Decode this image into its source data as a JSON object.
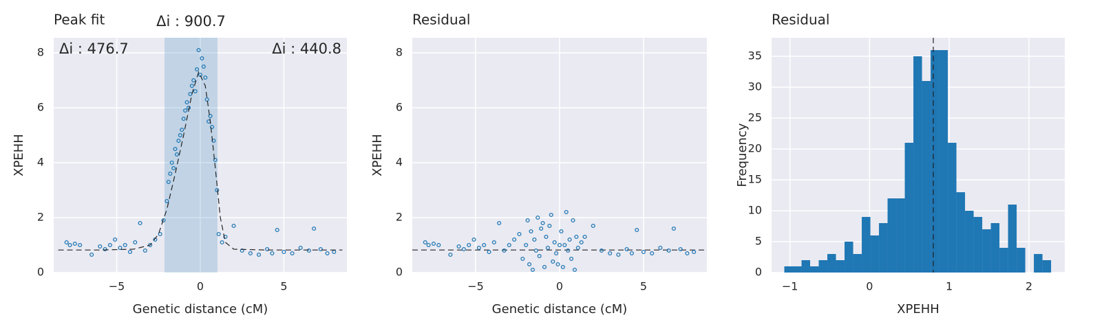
{
  "chart_data": [
    {
      "type": "scatter",
      "title": "Peak fit",
      "xlabel": "Genetic distance (cM)",
      "ylabel": "XPEHH",
      "annotations": [
        "Δi : 900.7",
        "Δi : 476.7",
        "Δi : 440.8"
      ],
      "xlim": [
        -8.77,
        8.77
      ],
      "ylim": [
        0,
        8.55
      ],
      "xticks": [
        {
          "value": -5,
          "label": "−5"
        },
        0,
        5
      ],
      "yticks": [
        0,
        2,
        4,
        6,
        8
      ],
      "grid": true,
      "color": "#1f77b4",
      "span": [
        -2.14,
        1.03
      ],
      "x": [
        -8,
        -7.8,
        -7.5,
        -7.2,
        -6.5,
        -6,
        -5.7,
        -5.4,
        -5.1,
        -4.8,
        -4.5,
        -4.2,
        -3.9,
        -3.6,
        -3.3,
        -3.0,
        -2.7,
        -2.4,
        -2.2,
        -2.0,
        -1.9,
        -1.8,
        -1.7,
        -1.6,
        -1.5,
        -1.4,
        -1.3,
        -1.2,
        -1.1,
        -1.0,
        -0.9,
        -0.8,
        -0.7,
        -0.6,
        -0.5,
        -0.4,
        -0.3,
        -0.2,
        -0.1,
        0,
        0.1,
        0.2,
        0.3,
        0.4,
        0.5,
        0.6,
        0.7,
        0.8,
        0.9,
        1.0,
        1.1,
        1.3,
        1.5,
        2.0,
        2.5,
        3.0,
        3.5,
        4.0,
        4.3,
        4.6,
        5.0,
        5.5,
        6.0,
        6.5,
        6.8,
        7.2,
        7.6,
        8.0
      ],
      "y": [
        1.1,
        1.0,
        1.05,
        1.0,
        0.65,
        0.95,
        0.85,
        1.0,
        1.2,
        0.9,
        1.0,
        0.75,
        1.1,
        1.8,
        0.8,
        1.0,
        1.2,
        1.4,
        1.9,
        2.6,
        3.3,
        3.6,
        4.0,
        3.8,
        4.5,
        4.3,
        4.8,
        5.0,
        5.2,
        5.6,
        5.9,
        6.2,
        6.0,
        6.5,
        6.8,
        7.0,
        6.6,
        7.4,
        8.1,
        7.2,
        7.8,
        7.5,
        7.1,
        6.3,
        5.5,
        5.7,
        5.3,
        4.8,
        4.1,
        3.0,
        1.4,
        1.1,
        1.3,
        1.7,
        0.8,
        0.7,
        0.65,
        0.85,
        0.7,
        1.55,
        0.75,
        0.7,
        0.9,
        0.8,
        1.6,
        0.85,
        0.7,
        0.75
      ],
      "fit": {
        "x": [
          -8.5,
          -6,
          -4,
          -3,
          -2.5,
          -2,
          -1.5,
          -1,
          -0.5,
          -0.1,
          0.3,
          0.6,
          0.9,
          1.2,
          1.5,
          2,
          4,
          8.5
        ],
        "y": [
          0.82,
          0.82,
          0.85,
          1.0,
          1.4,
          2.3,
          3.6,
          5.0,
          6.5,
          7.3,
          6.8,
          5.5,
          3.8,
          2.0,
          1.1,
          0.85,
          0.82,
          0.82
        ]
      }
    },
    {
      "type": "scatter",
      "title": "Residual",
      "xlabel": "Genetic distance (cM)",
      "ylabel": "XPEHH",
      "xlim": [
        -8.77,
        8.77
      ],
      "ylim": [
        0,
        8.55
      ],
      "xticks": [
        {
          "value": -5,
          "label": "−5"
        },
        0,
        5
      ],
      "yticks": [
        0,
        2,
        4,
        6,
        8
      ],
      "grid": true,
      "color": "#1f77b4",
      "hline": 0.82,
      "x": [
        -8,
        -7.8,
        -7.5,
        -7.2,
        -6.5,
        -6,
        -5.7,
        -5.4,
        -5.1,
        -4.8,
        -4.5,
        -4.2,
        -3.9,
        -3.6,
        -3.3,
        -3.0,
        -2.7,
        -2.4,
        -2.2,
        -2.0,
        -1.9,
        -1.8,
        -1.7,
        -1.6,
        -1.5,
        -1.4,
        -1.3,
        -1.2,
        -1.1,
        -1.0,
        -0.9,
        -0.8,
        -0.7,
        -0.6,
        -0.5,
        -0.4,
        -0.3,
        -0.2,
        -0.1,
        0,
        0.1,
        0.2,
        0.3,
        0.4,
        0.5,
        0.6,
        0.7,
        0.8,
        0.9,
        1.0,
        1.1,
        1.3,
        1.5,
        2.0,
        2.5,
        3.0,
        3.5,
        4.0,
        4.3,
        4.6,
        5.0,
        5.5,
        6.0,
        6.5,
        6.8,
        7.2,
        7.6,
        8.0
      ],
      "y": [
        1.1,
        1.0,
        1.05,
        1.0,
        0.65,
        0.95,
        0.85,
        1.0,
        1.2,
        0.9,
        1.0,
        0.75,
        1.1,
        1.8,
        0.8,
        1.0,
        1.2,
        1.4,
        0.5,
        1.0,
        1.9,
        0.3,
        1.5,
        0.1,
        1.2,
        0.8,
        2.0,
        0.6,
        1.6,
        1.8,
        0.2,
        1.3,
        0.9,
        1.7,
        2.1,
        0.4,
        1.1,
        0.7,
        0.3,
        1.0,
        1.5,
        0.2,
        1.0,
        2.2,
        0.8,
        1.2,
        0.5,
        1.9,
        0.1,
        1.3,
        0.9,
        1.1,
        1.3,
        1.7,
        0.8,
        0.7,
        0.65,
        0.85,
        0.7,
        1.55,
        0.75,
        0.7,
        0.9,
        0.8,
        1.6,
        0.85,
        0.7,
        0.75
      ]
    },
    {
      "type": "histogram",
      "title": "Residual",
      "xlabel": "XPEHH",
      "ylabel": "Frequency",
      "xlim": [
        -1.23,
        2.45
      ],
      "ylim": [
        0,
        38
      ],
      "xticks": [
        {
          "value": -1,
          "label": "−1"
        },
        0,
        1,
        2
      ],
      "yticks": [
        0,
        5,
        10,
        15,
        20,
        25,
        30,
        35
      ],
      "grid": true,
      "color": "#1f77b4",
      "vline": 0.8,
      "bins": [
        -1.07,
        -0.962,
        -0.854,
        -0.746,
        -0.638,
        -0.53,
        -0.422,
        -0.314,
        -0.206,
        -0.098,
        0.01,
        0.118,
        0.226,
        0.334,
        0.442,
        0.55,
        0.658,
        0.766,
        0.874,
        0.982,
        1.09,
        1.198,
        1.306,
        1.414,
        1.522,
        1.63,
        1.738,
        1.846,
        1.954,
        2.062,
        2.17,
        2.278
      ],
      "counts": [
        1,
        1,
        2,
        1,
        2,
        3,
        2,
        5,
        3,
        9,
        6,
        8,
        12,
        12,
        21,
        35,
        31,
        36,
        36,
        21,
        13,
        10,
        9,
        7,
        8,
        4,
        11,
        4,
        0,
        3,
        2
      ]
    }
  ]
}
